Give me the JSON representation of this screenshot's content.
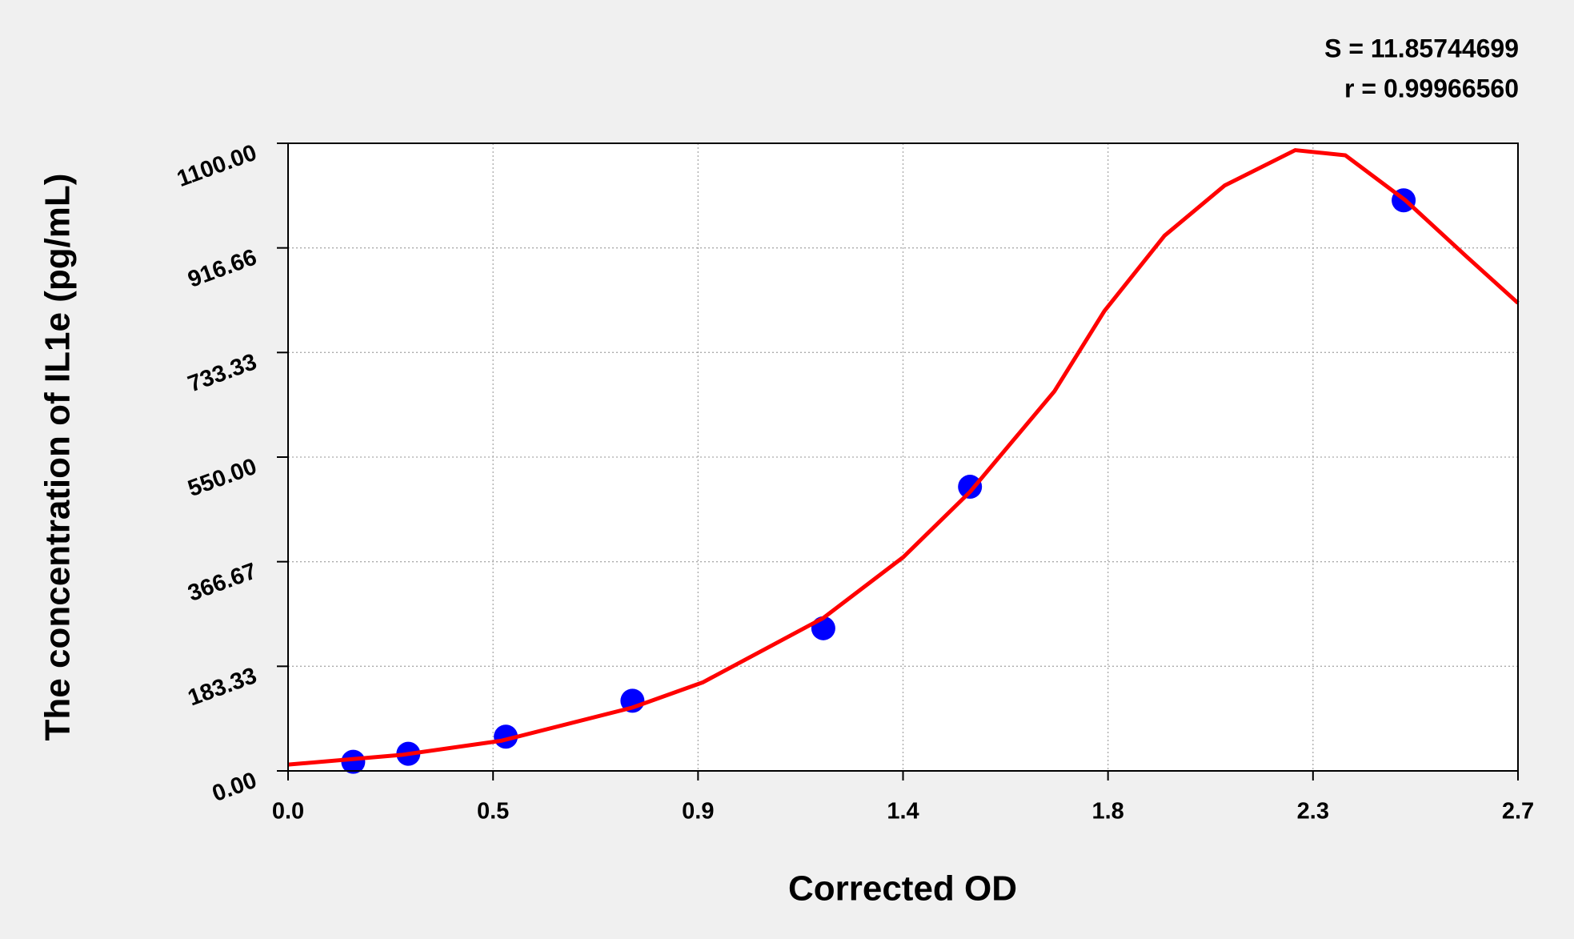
{
  "chart_data": {
    "type": "scatter",
    "annotations": [
      "S = 11.85744699",
      "r = 0.99966560"
    ],
    "x_label": "Corrected OD",
    "y_label": "The concentration of IL1e (pg/mL)",
    "xlim": [
      0,
      2.7
    ],
    "xticks": [
      {
        "value": 0,
        "label": "0.0"
      },
      {
        "value": 0.45,
        "label": "0.5"
      },
      0.9,
      {
        "value": 1.35,
        "label": "1.4"
      },
      1.8,
      {
        "value": 2.25,
        "label": "2.3"
      },
      2.7
    ],
    "ylim": [
      0,
      1100
    ],
    "yticks": [
      {
        "value": 0,
        "label": "0.00"
      },
      183.33,
      366.67,
      {
        "value": 550,
        "label": "550.00"
      },
      733.33,
      916.66,
      {
        "value": 1100,
        "label": "1100.00"
      }
    ],
    "grid": true,
    "series": [
      {
        "type": "scatter",
        "color": "#0000ff",
        "x": [
          0.143,
          0.264,
          0.478,
          0.756,
          1.175,
          1.497,
          2.449
        ],
        "values": [
          16,
          30,
          60,
          123,
          250,
          498,
          1000
        ]
      },
      {
        "type": "line",
        "color": "#ff0000",
        "x": [
          0,
          0.249,
          0.469,
          0.756,
          0.91,
          1.175,
          1.351,
          1.497,
          1.682,
          1.792,
          1.924,
          2.056,
          2.211,
          2.321,
          2.453,
          2.585,
          2.7
        ],
        "values": [
          11,
          28,
          53,
          111,
          155,
          268,
          375,
          489,
          665,
          806,
          938,
          1026,
          1088,
          1079,
          1000,
          903,
          820
        ]
      }
    ]
  }
}
